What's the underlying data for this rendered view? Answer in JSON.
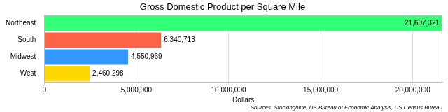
{
  "chart_data": {
    "type": "bar",
    "orientation": "horizontal",
    "title": "Gross Domestic Product per Square Mile",
    "x_label": "Dollars",
    "source": "Sources: Stockingblue, US Bureau of Economic Analysis, US Census Bureau",
    "categories": [
      "Northeast",
      "South",
      "Midwest",
      "West"
    ],
    "values": [
      21607321,
      6340713,
      4550969,
      2460298
    ],
    "value_labels": [
      "21,607,321",
      "6,340,713",
      "4,550,969",
      "2,460,298"
    ],
    "colors": [
      "#33ff77",
      "#ff6347",
      "#3399ff",
      "#ffd700"
    ],
    "xlim": [
      0,
      21607321
    ],
    "xticks": [
      0,
      {
        "value": 5000000,
        "label": "5,000,000"
      },
      {
        "value": 10000000,
        "label": "10,000,000"
      },
      {
        "value": 15000000,
        "label": "15,000,000"
      },
      {
        "value": 20000000,
        "label": "20,000,000"
      }
    ],
    "grid": true,
    "data_labels": true
  }
}
